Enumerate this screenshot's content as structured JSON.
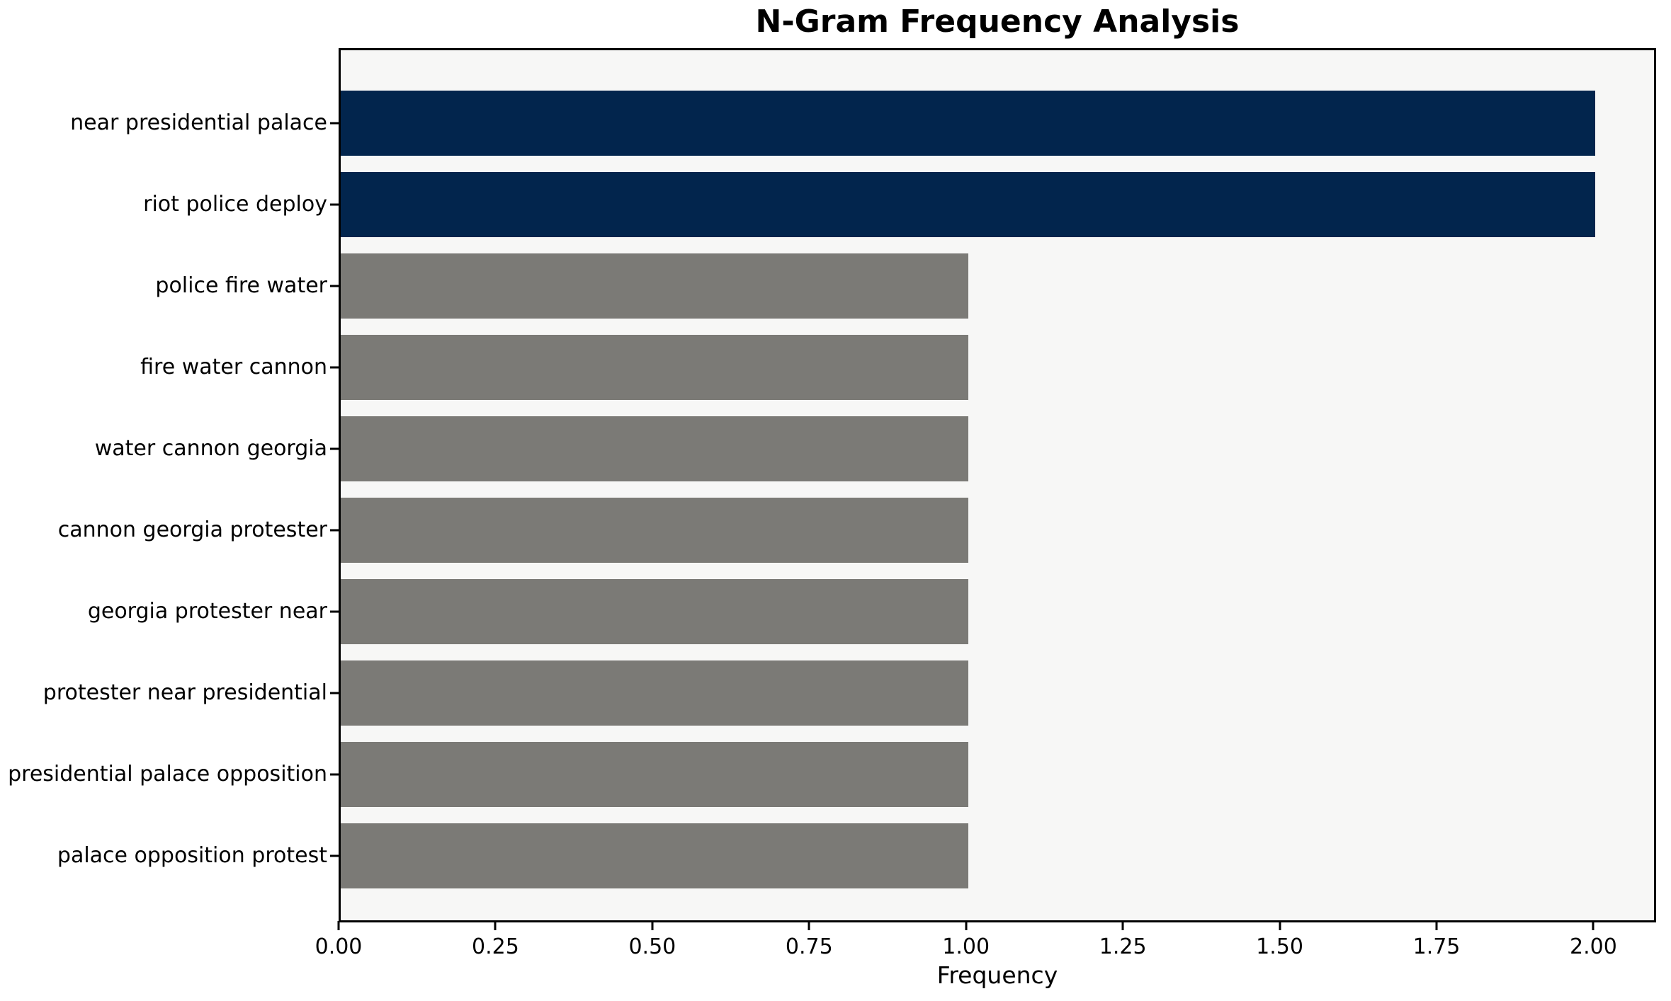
{
  "figure": {
    "background": "#ffffff",
    "plot_background": "#f7f7f6",
    "spine_color": "#000000"
  },
  "chart_data": {
    "type": "bar",
    "orientation": "horizontal",
    "title": "N-Gram Frequency Analysis",
    "xlabel": "Frequency",
    "ylabel": "",
    "categories": [
      "near presidential palace",
      "riot police deploy",
      "police fire water",
      "fire water cannon",
      "water cannon georgia",
      "cannon georgia protester",
      "georgia protester near",
      "protester near presidential",
      "presidential palace opposition",
      "palace opposition protest"
    ],
    "values": [
      2,
      2,
      1,
      1,
      1,
      1,
      1,
      1,
      1,
      1
    ],
    "bar_colors": [
      "#02254d",
      "#02254d",
      "#7b7a76",
      "#7b7a76",
      "#7b7a76",
      "#7b7a76",
      "#7b7a76",
      "#7b7a76",
      "#7b7a76",
      "#7b7a76"
    ],
    "highlight_color": "#02254d",
    "default_color": "#7b7a76",
    "xlim": [
      0,
      2.1
    ],
    "xticks": [
      "0.00",
      "0.25",
      "0.50",
      "0.75",
      "1.00",
      "1.25",
      "1.50",
      "1.75",
      "2.00"
    ],
    "grid": false,
    "legend": false
  }
}
